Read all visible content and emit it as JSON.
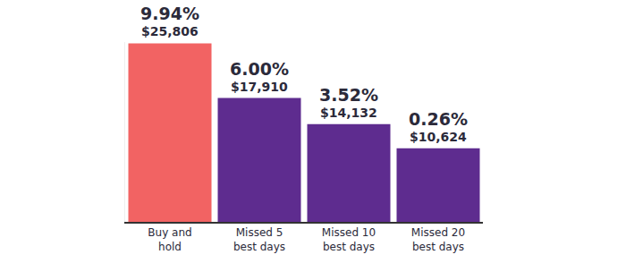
{
  "chart_data": {
    "type": "bar",
    "categories": [
      "Buy and hold",
      "Missed 5 best days",
      "Missed 10 best days",
      "Missed 20 best days"
    ],
    "values": [
      25806,
      17910,
      14132,
      10624
    ],
    "value_labels": [
      "$25,806",
      "$17,910",
      "$14,132",
      "$10,624"
    ],
    "return_values": [
      9.94,
      6.0,
      3.52,
      0.26
    ],
    "return_labels": [
      "9.94%",
      "6.00%",
      "3.52%",
      "0.26%"
    ],
    "colors": [
      "#f26363",
      "#5e2c8f",
      "#5e2c8f",
      "#5e2c8f"
    ],
    "ylim": [
      0,
      26000
    ],
    "grid": false,
    "data_labels": true,
    "tick_labels": "x"
  }
}
